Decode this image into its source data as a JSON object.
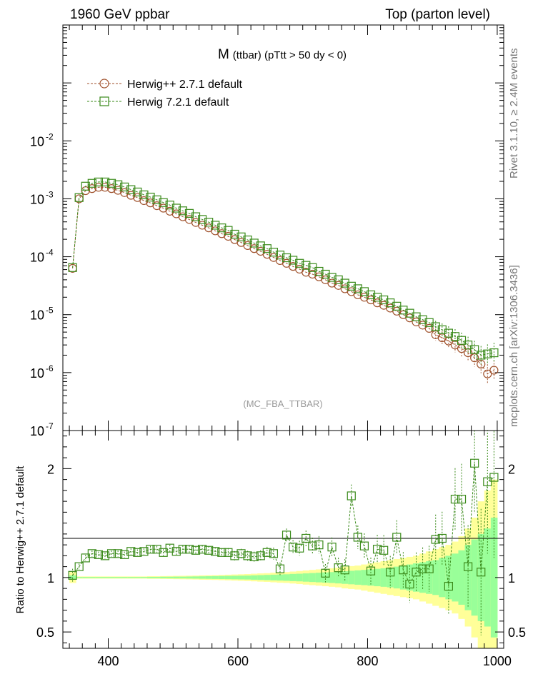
{
  "header": {
    "left": "1960 GeV ppbar",
    "right": "Top (parton level)"
  },
  "side_labels": {
    "rivet": "Rivet 3.1.10, ≥ 2.4M events",
    "mcplots": "mcplots.cern.ch [arXiv:1306.3436]"
  },
  "colors": {
    "herwig_pp": "#a0522d",
    "herwig_7": "#3a8a1a",
    "band_outer": "#ffff99",
    "band_inner": "#99ff99"
  },
  "chart_data": [
    {
      "type": "scatter",
      "title": "M (ttbar) (pTtt > 50 dy < 0)",
      "title_main": "M",
      "title_sub": "(ttbar) (pTtt > 50 dy < 0)",
      "watermark": "(MC_FBA_TTBAR)",
      "xlabel": "",
      "ylabel": "",
      "xlim": [
        330,
        1010
      ],
      "ylim": [
        1e-07,
        1
      ],
      "yscale": "log",
      "legend_position": "top-left",
      "x_ticks": [
        400,
        600,
        800,
        1000
      ],
      "y_ticks": [
        {
          "value": 1e-07,
          "base": "10",
          "exp": "-7"
        },
        {
          "value": 1e-06,
          "base": "10",
          "exp": "-6"
        },
        {
          "value": 1e-05,
          "base": "10",
          "exp": "-5"
        },
        {
          "value": 0.0001,
          "base": "10",
          "exp": "-4"
        },
        {
          "value": 0.001,
          "base": "10",
          "exp": "-3"
        },
        {
          "value": 0.01,
          "base": "10",
          "exp": "-2"
        }
      ],
      "x": [
        345,
        355,
        365,
        375,
        385,
        395,
        405,
        415,
        425,
        435,
        445,
        455,
        465,
        475,
        485,
        495,
        505,
        515,
        525,
        535,
        545,
        555,
        565,
        575,
        585,
        595,
        605,
        615,
        625,
        635,
        645,
        655,
        665,
        675,
        685,
        695,
        705,
        715,
        725,
        735,
        745,
        755,
        765,
        775,
        785,
        795,
        805,
        815,
        825,
        835,
        845,
        855,
        865,
        875,
        885,
        895,
        905,
        915,
        925,
        935,
        945,
        955,
        965,
        975,
        985,
        995
      ],
      "series": [
        {
          "name": "Herwig++ 2.7.1 default",
          "marker": "circle",
          "values": [
            6.3e-05,
            0.001,
            0.00138,
            0.0015,
            0.00158,
            0.00158,
            0.0015,
            0.0014,
            0.00128,
            0.00115,
            0.00105,
            0.00093,
            0.00085,
            0.00076,
            0.00069,
            0.00061,
            0.00055,
            0.00049,
            0.00044,
            0.00039,
            0.00035,
            0.000315,
            0.00028,
            0.00025,
            0.000225,
            0.000198,
            0.000176,
            0.000156,
            0.000138,
            0.000124,
            0.00011,
            9.7e-05,
            8.6e-05,
            7.7e-05,
            6.8e-05,
            6.1e-05,
            5.4e-05,
            5e-05,
            4.5e-05,
            4e-05,
            3.5e-05,
            3.2e-05,
            2.8e-05,
            2.5e-05,
            2.2e-05,
            2e-05,
            1.8e-05,
            1.6e-05,
            1.45e-05,
            1.3e-05,
            1.15e-05,
            1e-05,
            8.8e-06,
            7.5e-06,
            6.6e-06,
            5.8e-06,
            4.5e-06,
            4e-06,
            3.5e-06,
            3e-06,
            2.6e-06,
            2.2e-06,
            1.8e-06,
            1.4e-06,
            9.5e-07,
            1.1e-06
          ]
        },
        {
          "name": "Herwig 7.2.1 default",
          "marker": "square",
          "values": [
            6.5e-05,
            0.00105,
            0.00165,
            0.00185,
            0.00195,
            0.00195,
            0.00185,
            0.00175,
            0.0016,
            0.00144,
            0.00131,
            0.00117,
            0.00107,
            0.00096,
            0.00086,
            0.00078,
            0.00069,
            0.00062,
            0.00056,
            0.00049,
            0.00044,
            0.000395,
            0.00035,
            0.000315,
            0.000285,
            0.000245,
            0.00022,
            0.000195,
            0.000172,
            0.000154,
            0.000138,
            0.00012,
            0.000107,
            9.6e-05,
            8.7e-05,
            7.7e-05,
            7.1e-05,
            6.5e-05,
            5.6e-05,
            5e-05,
            4.4e-05,
            4e-05,
            3.5e-05,
            3.1e-05,
            2.8e-05,
            2.5e-05,
            2.2e-05,
            2e-05,
            1.8e-05,
            1.6e-05,
            1.4e-05,
            1.2e-05,
            1.06e-05,
            9.2e-06,
            8.2e-06,
            7.3e-06,
            6.2e-06,
            5.5e-06,
            4.8e-06,
            4.2e-06,
            3.6e-06,
            3e-06,
            2.5e-06,
            2e-06,
            2.1e-06,
            2.2e-06
          ]
        }
      ]
    },
    {
      "type": "scatter",
      "title": "",
      "xlabel": "",
      "ylabel": "Ratio to Herwig++ 2.7.1 default",
      "xlim": [
        330,
        1010
      ],
      "ylim": [
        0.35,
        2.35
      ],
      "x_ticks": [
        400,
        600,
        800,
        1000
      ],
      "y_ticks": [
        0.5,
        1,
        2
      ],
      "x": [
        345,
        355,
        365,
        375,
        385,
        395,
        405,
        415,
        425,
        435,
        445,
        455,
        465,
        475,
        485,
        495,
        505,
        515,
        525,
        535,
        545,
        555,
        565,
        575,
        585,
        595,
        605,
        615,
        625,
        635,
        645,
        655,
        665,
        675,
        685,
        695,
        705,
        715,
        725,
        735,
        745,
        755,
        765,
        775,
        785,
        795,
        805,
        815,
        825,
        835,
        845,
        855,
        865,
        875,
        885,
        895,
        905,
        915,
        925,
        935,
        945,
        955,
        965,
        975,
        985,
        995
      ],
      "band_outer": [
        0.05,
        0.01,
        0.01,
        0.01,
        0.01,
        0.01,
        0.01,
        0.01,
        0.01,
        0.01,
        0.01,
        0.01,
        0.012,
        0.012,
        0.013,
        0.014,
        0.015,
        0.016,
        0.017,
        0.018,
        0.02,
        0.021,
        0.022,
        0.024,
        0.026,
        0.028,
        0.03,
        0.032,
        0.035,
        0.038,
        0.04,
        0.044,
        0.048,
        0.05,
        0.055,
        0.06,
        0.065,
        0.07,
        0.075,
        0.08,
        0.085,
        0.09,
        0.1,
        0.105,
        0.11,
        0.12,
        0.13,
        0.14,
        0.15,
        0.16,
        0.17,
        0.18,
        0.19,
        0.2,
        0.22,
        0.24,
        0.26,
        0.28,
        0.3,
        0.33,
        0.38,
        0.45,
        0.55,
        0.7,
        0.8,
        0.9
      ],
      "band_inner": [
        0.02,
        0.005,
        0.005,
        0.005,
        0.005,
        0.005,
        0.005,
        0.005,
        0.005,
        0.005,
        0.005,
        0.005,
        0.006,
        0.006,
        0.007,
        0.007,
        0.008,
        0.008,
        0.009,
        0.01,
        0.011,
        0.012,
        0.013,
        0.014,
        0.015,
        0.016,
        0.017,
        0.018,
        0.02,
        0.022,
        0.024,
        0.026,
        0.028,
        0.03,
        0.033,
        0.035,
        0.038,
        0.041,
        0.044,
        0.047,
        0.05,
        0.054,
        0.058,
        0.062,
        0.066,
        0.07,
        0.075,
        0.08,
        0.085,
        0.09,
        0.1,
        0.11,
        0.12,
        0.13,
        0.14,
        0.15,
        0.16,
        0.18,
        0.2,
        0.22,
        0.25,
        0.3,
        0.35,
        0.4,
        0.45,
        0.55
      ],
      "series": [
        {
          "name": "Herwig 7.2.1 default",
          "marker": "square",
          "values": [
            1.02,
            1.1,
            1.18,
            1.22,
            1.21,
            1.2,
            1.22,
            1.22,
            1.21,
            1.24,
            1.23,
            1.24,
            1.26,
            1.26,
            1.23,
            1.27,
            1.24,
            1.26,
            1.26,
            1.25,
            1.26,
            1.25,
            1.24,
            1.23,
            1.23,
            1.2,
            1.22,
            1.2,
            1.19,
            1.2,
            1.23,
            1.22,
            1.08,
            1.39,
            1.28,
            1.27,
            1.36,
            1.29,
            1.3,
            1.04,
            1.28,
            1.09,
            1.07,
            1.75,
            1.37,
            1.29,
            1.06,
            1.26,
            1.25,
            1.05,
            1.37,
            1.07,
            0.94,
            1.05,
            1.08,
            1.08,
            1.35,
            1.36,
            0.92,
            1.72,
            1.72,
            1.1,
            2.05,
            1.05,
            1.88,
            1.92
          ]
        }
      ]
    }
  ]
}
